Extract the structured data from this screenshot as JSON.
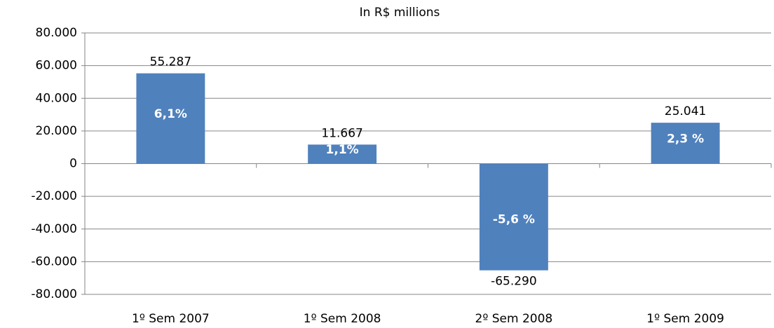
{
  "chart_data": {
    "type": "bar",
    "title": "In R$ millions",
    "categories": [
      "1º Sem 2007",
      "1º Sem 2008",
      "2º Sem 2008",
      "1º Sem 2009"
    ],
    "values": [
      55287,
      11667,
      -65290,
      25041
    ],
    "value_labels": [
      "55.287",
      "11.667",
      "-65.290",
      "25.041"
    ],
    "bar_annotations": [
      "6,1%",
      "1,1%",
      "-5,6 %",
      "2,3 %"
    ],
    "color": "#4f81bd",
    "ylim": [
      -80000,
      80000
    ],
    "yticks": [
      {
        "value": -80000,
        "label": "-80.000"
      },
      {
        "value": -60000,
        "label": "-60.000"
      },
      {
        "value": -40000,
        "label": "-40.000"
      },
      {
        "value": -20000,
        "label": "-20.000"
      },
      0,
      {
        "value": 20000,
        "label": "20.000"
      },
      {
        "value": 40000,
        "label": "40.000"
      },
      {
        "value": 60000,
        "label": "60.000"
      },
      {
        "value": 80000,
        "label": "80.000"
      }
    ],
    "grid": true
  }
}
